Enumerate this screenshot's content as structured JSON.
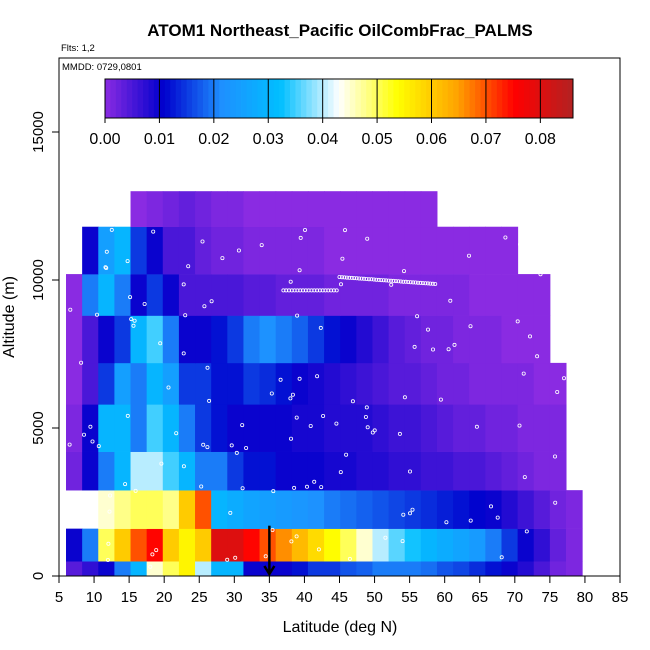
{
  "chart_data": {
    "type": "heatmap",
    "title": "ATOM1 Northeast_Pacific OilCombFrac_PALMS",
    "flights_label": "Flts: 1,2",
    "dates_label": "MMDD: 0729,0801",
    "xlabel": "Latitude (deg N)",
    "ylabel": "Altitude (m)",
    "xlim": [
      5,
      85
    ],
    "ylim": [
      0,
      17500
    ],
    "x_ticks": [
      "5",
      "10",
      "15",
      "20",
      "25",
      "30",
      "35",
      "40",
      "45",
      "50",
      "55",
      "60",
      "65",
      "70",
      "75",
      "80",
      "85"
    ],
    "y_ticks": [
      "0",
      "5000",
      "10000",
      "15000"
    ],
    "colorbar": {
      "range": [
        0,
        0.086
      ],
      "ticks": [
        "0.00",
        "0.01",
        "0.02",
        "0.03",
        "0.04",
        "0.05",
        "0.06",
        "0.07",
        "0.08"
      ],
      "colors": [
        "#8a2be2",
        "#0000cd",
        "#1e90ff",
        "#00bfff",
        "#ffffff",
        "#ffff00",
        "#ffa500",
        "#ff0000",
        "#b22222"
      ]
    },
    "marker": {
      "latitude": 35,
      "altitude": 700
    },
    "altitude_bins": [
      {
        "alt": 150,
        "row": 0,
        "v": [
          0.004,
          0.007,
          0.01,
          0.02,
          0.03,
          0.045,
          0.05,
          0.055,
          0.04,
          0.03,
          0.03,
          0.01,
          0.01,
          0.01,
          0.012,
          0.015,
          0.015,
          0.017,
          0.018,
          0.02,
          0.02,
          0.02,
          0.019,
          0.017,
          0.016,
          0.014,
          0.012,
          0.01,
          0.008,
          0.005,
          0.002,
          0.001
        ]
      },
      {
        "alt": 1000,
        "row": 1,
        "v": [
          0.01,
          0.02,
          0.05,
          0.06,
          0.07,
          0.075,
          0.06,
          0.055,
          0.06,
          0.08,
          0.08,
          0.075,
          0.07,
          0.066,
          0.062,
          0.058,
          0.054,
          0.05,
          0.045,
          0.04,
          0.036,
          0.033,
          0.03,
          0.028,
          0.026,
          0.024,
          0.02,
          0.015,
          0.01,
          0.007,
          0.003,
          0.001
        ]
      },
      {
        "alt": 2250,
        "row": 2,
        "v": [
          -1,
          -1,
          0.045,
          0.048,
          0.05,
          0.05,
          0.048,
          0.06,
          0.07,
          0.03,
          0.028,
          0.026,
          0.025,
          0.024,
          0.023,
          0.022,
          0.02,
          0.019,
          0.018,
          0.017,
          0.016,
          0.015,
          0.014,
          0.013,
          0.012,
          0.011,
          0.01,
          0.008,
          0.006,
          0.004,
          0.002,
          0.001
        ]
      },
      {
        "alt": 3500,
        "row": 3,
        "v": [
          0.002,
          0.01,
          0.02,
          0.03,
          0.04,
          0.04,
          0.035,
          0.03,
          0.02,
          0.02,
          0.015,
          0.012,
          0.012,
          0.01,
          0.01,
          0.01,
          0.009,
          0.009,
          0.008,
          0.008,
          0.007,
          0.007,
          0.006,
          0.006,
          0.005,
          0.005,
          0.004,
          0.003,
          0.002,
          0.001,
          0.001,
          -1
        ]
      },
      {
        "alt": 5000,
        "row": 4,
        "v": [
          0.001,
          0.01,
          0.03,
          0.03,
          0.02,
          0.035,
          0.03,
          0.02,
          0.015,
          0.012,
          0.01,
          0.01,
          0.01,
          0.01,
          0.009,
          0.009,
          0.008,
          0.008,
          0.008,
          0.007,
          0.006,
          0.006,
          0.005,
          0.004,
          0.003,
          0.003,
          0.002,
          0.002,
          0.001,
          0.001,
          0.001,
          -1
        ]
      },
      {
        "alt": 6500,
        "row": 5,
        "v": [
          0.0,
          0.005,
          0.015,
          0.025,
          0.02,
          0.03,
          0.025,
          0.015,
          0.015,
          0.012,
          0.012,
          0.015,
          0.014,
          0.012,
          0.01,
          0.009,
          0.008,
          0.007,
          0.006,
          0.005,
          0.004,
          0.004,
          0.003,
          0.002,
          0.002,
          0.001,
          0.001,
          0.001,
          0.001,
          0.0,
          0.0,
          -1
        ]
      },
      {
        "alt": 8000,
        "row": 6,
        "v": [
          0.0,
          0.005,
          0.01,
          0.015,
          0.03,
          0.035,
          0.02,
          0.01,
          0.01,
          0.012,
          0.015,
          0.02,
          0.022,
          0.02,
          0.018,
          0.015,
          0.012,
          0.01,
          0.008,
          0.006,
          0.004,
          0.003,
          0.002,
          0.002,
          0.001,
          0.001,
          0.001,
          0.0,
          0.0,
          0.0,
          -1,
          -1
        ]
      },
      {
        "alt": 9500,
        "row": 7,
        "v": [
          0.0,
          0.02,
          0.03,
          0.02,
          0.01,
          0.015,
          0.01,
          0.005,
          0.005,
          0.005,
          0.005,
          0.004,
          0.004,
          0.003,
          0.003,
          0.003,
          0.002,
          0.002,
          0.002,
          0.002,
          0.001,
          0.001,
          0.001,
          0.001,
          0.001,
          0.0,
          0.0,
          0.0,
          0.0,
          0.0,
          -1,
          -1
        ]
      },
      {
        "alt": 11000,
        "row": 8,
        "v": [
          -1,
          0.01,
          0.025,
          0.03,
          0.015,
          0.01,
          0.005,
          0.005,
          0.003,
          0.002,
          0.002,
          0.001,
          0.001,
          0.001,
          0.001,
          0.001,
          0.0,
          0.0,
          0.0,
          0.0,
          0.0,
          0.0,
          0.0,
          0.0,
          0.0,
          0.0,
          0.0,
          0.0,
          -1,
          -1,
          -1,
          -1
        ]
      },
      {
        "alt": 12400,
        "row": 9,
        "v": [
          -1,
          -1,
          -1,
          -1,
          0.0,
          0.001,
          0.002,
          0.003,
          0.002,
          0.001,
          0.001,
          0.0,
          0.0,
          0.0,
          0.0,
          0.0,
          0.0,
          0.0,
          0.0,
          0.0,
          0.0,
          0.0,
          0.0,
          -1,
          -1,
          -1,
          -1,
          -1,
          -1,
          -1,
          -1,
          -1
        ]
      }
    ]
  }
}
